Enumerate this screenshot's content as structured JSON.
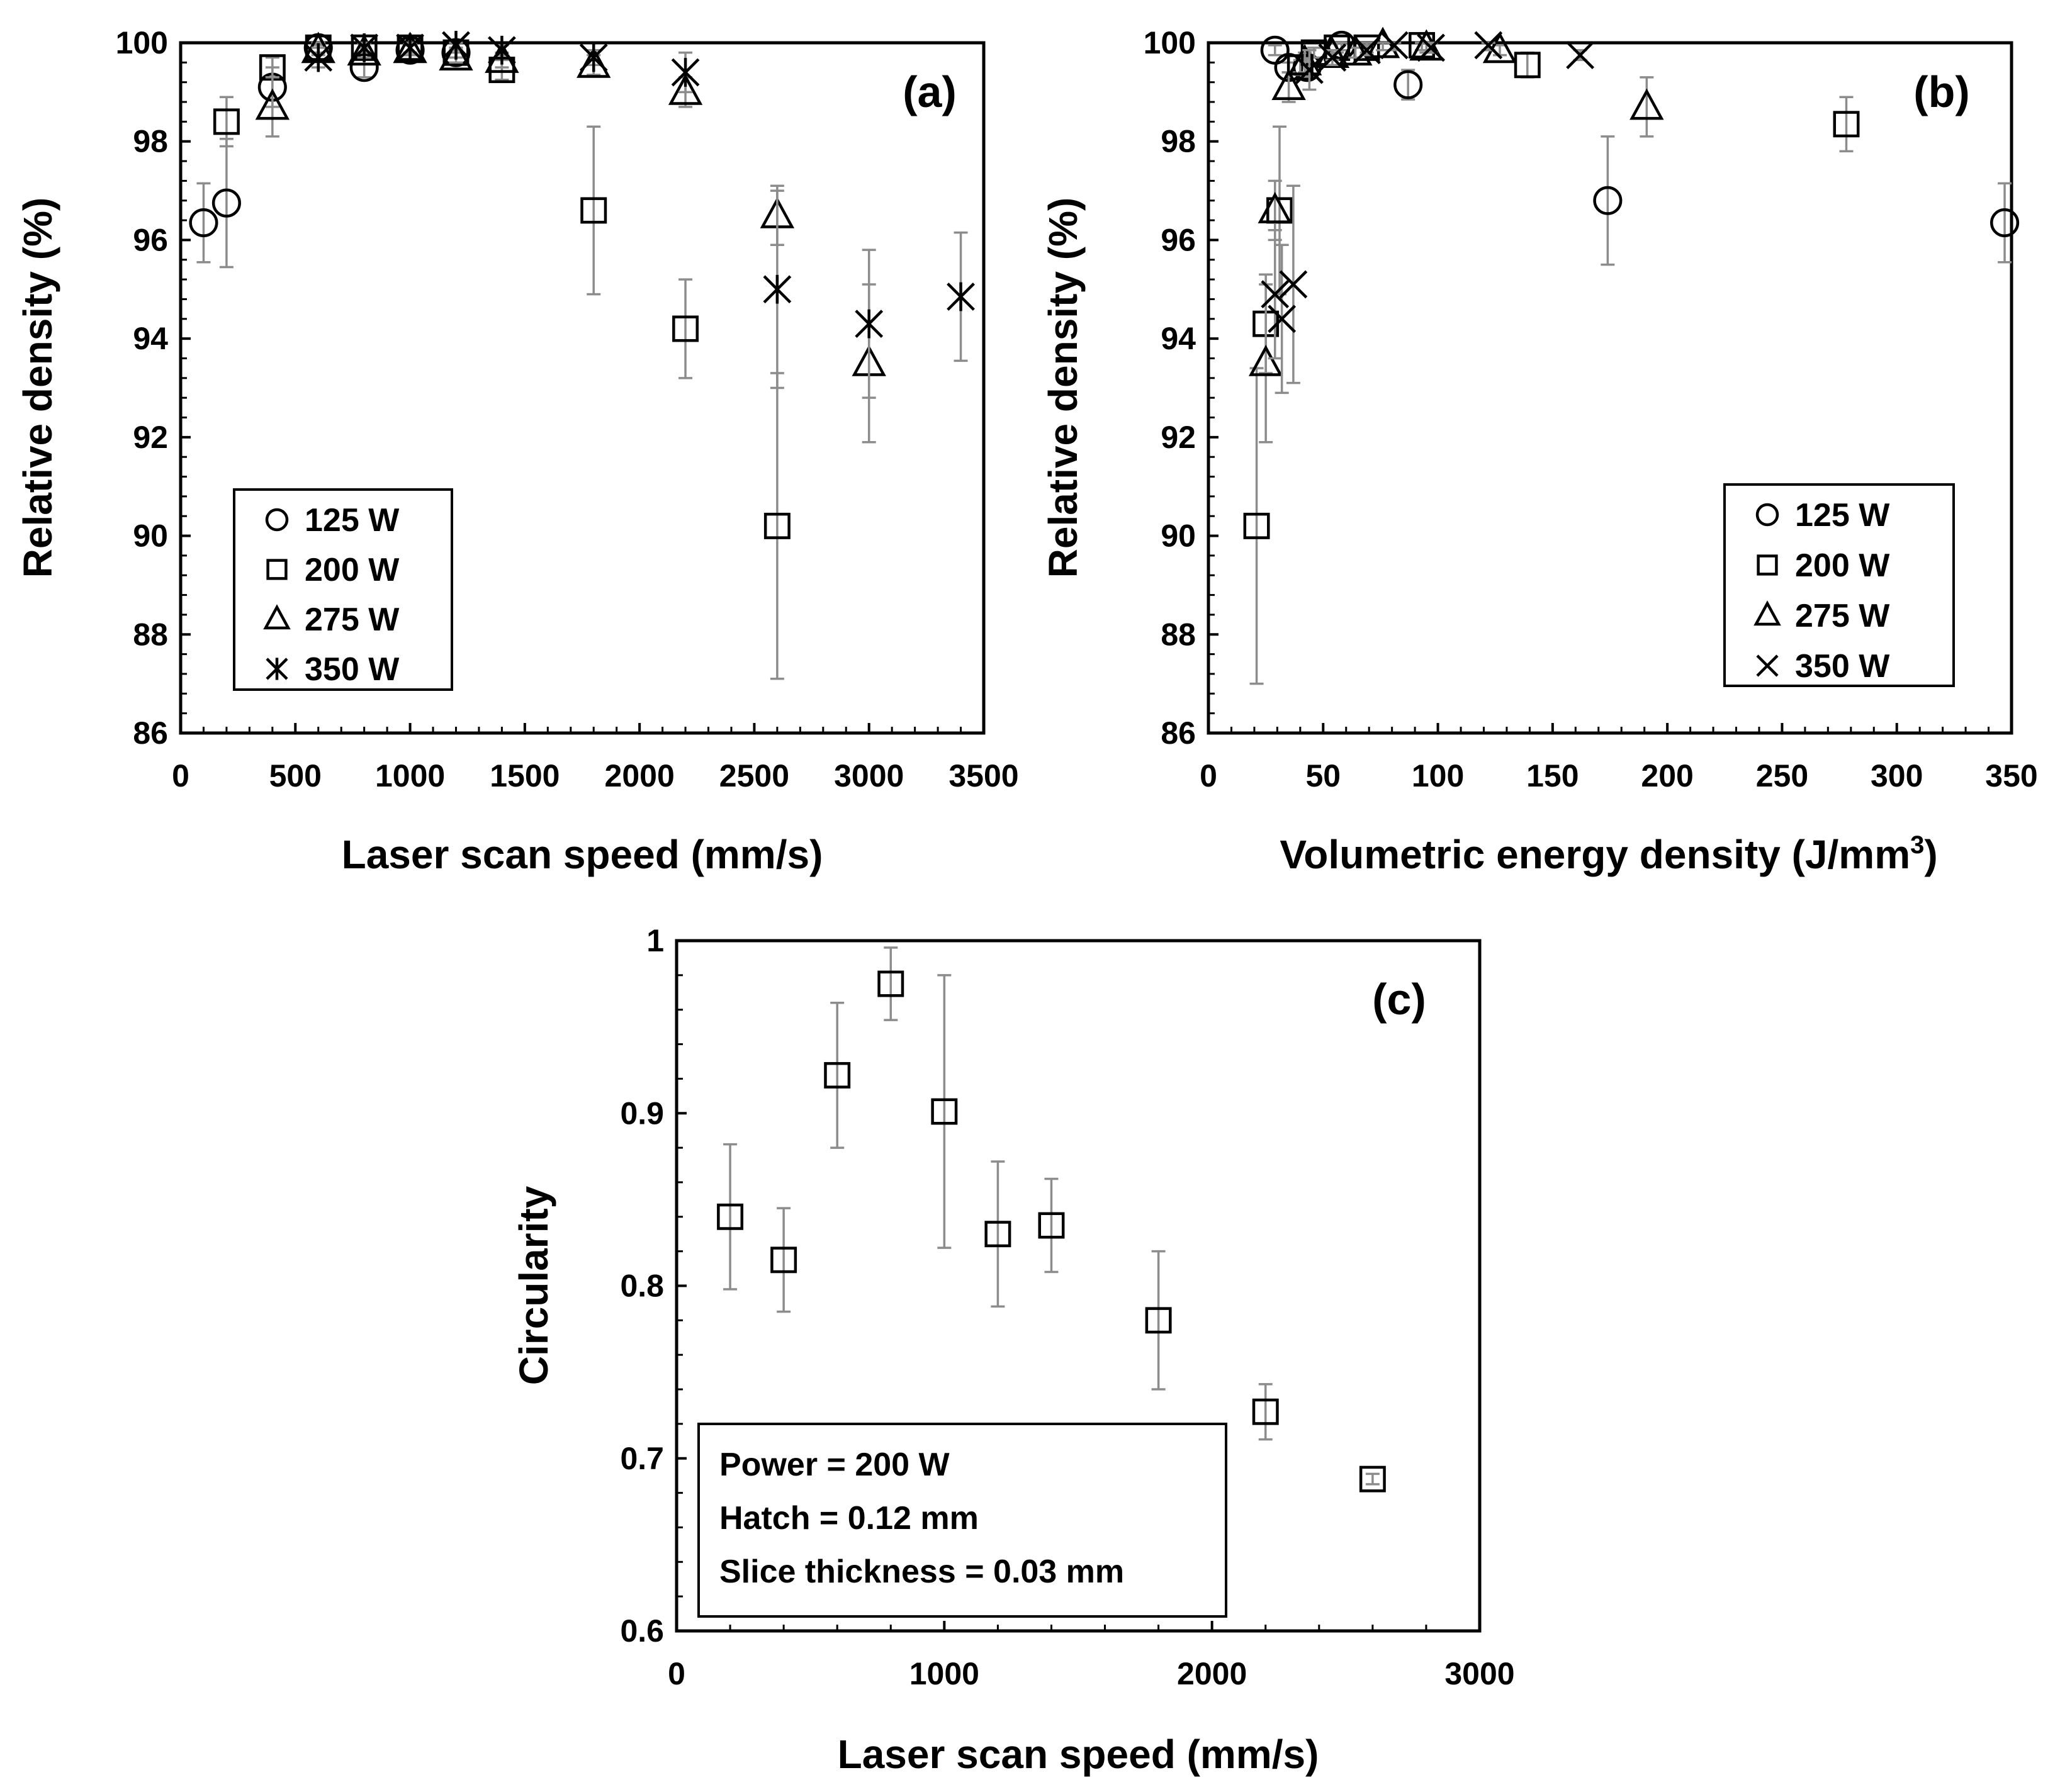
{
  "chart_data": [
    {
      "id": "a",
      "type": "scatter",
      "panel_label": "(a)",
      "xlabel": "Laser scan speed (mm/s)",
      "ylabel": "Relative density (%)",
      "xlim": [
        0,
        3500
      ],
      "ylim": [
        86,
        100
      ],
      "xticks": [
        0,
        500,
        1000,
        1500,
        2000,
        2500,
        3000,
        3500
      ],
      "yticks": [
        86,
        88,
        90,
        92,
        94,
        96,
        98,
        100
      ],
      "legend_position": "bottom-left",
      "series": [
        {
          "name": "125 W",
          "marker": "circle",
          "points": [
            {
              "x": 100,
              "y": 96.35,
              "err": 0.8
            },
            {
              "x": 200,
              "y": 96.75,
              "err": 1.3
            },
            {
              "x": 400,
              "y": 99.1,
              "err": 0.4
            },
            {
              "x": 600,
              "y": 99.9,
              "err": 0.1
            },
            {
              "x": 800,
              "y": 99.5,
              "err": 0.2
            },
            {
              "x": 1000,
              "y": 99.85,
              "err": 0.1
            },
            {
              "x": 1200,
              "y": 99.8,
              "err": 0.1
            }
          ]
        },
        {
          "name": "200 W",
          "marker": "square",
          "points": [
            {
              "x": 200,
              "y": 98.4,
              "err": 0.5
            },
            {
              "x": 400,
              "y": 99.5,
              "err": 0.2
            },
            {
              "x": 600,
              "y": 99.9,
              "err": 0.1
            },
            {
              "x": 800,
              "y": 99.9,
              "err": 0.1
            },
            {
              "x": 1000,
              "y": 99.9,
              "err": 0.1
            },
            {
              "x": 1200,
              "y": 99.8,
              "err": 0.1
            },
            {
              "x": 1400,
              "y": 99.45,
              "err": 0.2
            },
            {
              "x": 1800,
              "y": 96.6,
              "err": 1.7
            },
            {
              "x": 2200,
              "y": 94.2,
              "err": 1.0
            },
            {
              "x": 2600,
              "y": 90.2,
              "err": 3.1
            }
          ]
        },
        {
          "name": "275 W",
          "marker": "triangle",
          "points": [
            {
              "x": 400,
              "y": 98.7,
              "err": 0.6
            },
            {
              "x": 600,
              "y": 99.85,
              "err": 0.1
            },
            {
              "x": 800,
              "y": 99.8,
              "err": 0.1
            },
            {
              "x": 1000,
              "y": 99.85,
              "err": 0.1
            },
            {
              "x": 1200,
              "y": 99.7,
              "err": 0.1
            },
            {
              "x": 1400,
              "y": 99.65,
              "err": 0.15
            },
            {
              "x": 1800,
              "y": 99.55,
              "err": 0.2
            },
            {
              "x": 2200,
              "y": 99.0,
              "err": 0.3
            },
            {
              "x": 2600,
              "y": 96.5,
              "err": 0.6
            },
            {
              "x": 3000,
              "y": 93.5,
              "err": 1.6
            }
          ]
        },
        {
          "name": "350 W",
          "marker": "asterisk",
          "points": [
            {
              "x": 600,
              "y": 99.7,
              "err": 0.2
            },
            {
              "x": 800,
              "y": 99.9,
              "err": 0.1
            },
            {
              "x": 1000,
              "y": 99.9,
              "err": 0.1
            },
            {
              "x": 1200,
              "y": 99.95,
              "err": 0.1
            },
            {
              "x": 1400,
              "y": 99.85,
              "err": 0.1
            },
            {
              "x": 1800,
              "y": 99.7,
              "err": 0.15
            },
            {
              "x": 2200,
              "y": 99.4,
              "err": 0.4
            },
            {
              "x": 2600,
              "y": 95.0,
              "err": 2.0
            },
            {
              "x": 3000,
              "y": 94.3,
              "err": 1.5
            },
            {
              "x": 3400,
              "y": 94.85,
              "err": 1.3
            }
          ]
        }
      ]
    },
    {
      "id": "b",
      "type": "scatter",
      "panel_label": "(b)",
      "xlabel": "Volumetric energy density (J/mm",
      "xlabel_superscript": "3",
      "xlabel_suffix": ")",
      "ylabel": "Relative density (%)",
      "xlim": [
        0,
        350
      ],
      "ylim": [
        86,
        100
      ],
      "xticks": [
        0,
        50,
        100,
        150,
        200,
        250,
        300,
        350
      ],
      "yticks": [
        86,
        88,
        90,
        92,
        94,
        96,
        98,
        100
      ],
      "legend_position": "bottom-right",
      "series": [
        {
          "name": "125 W",
          "marker": "circle",
          "points": [
            {
              "x": 347,
              "y": 96.35,
              "err": 0.8
            },
            {
              "x": 174,
              "y": 96.8,
              "err": 1.3
            },
            {
              "x": 87,
              "y": 99.15,
              "err": 0.3
            },
            {
              "x": 58,
              "y": 99.95,
              "err": 0.1
            },
            {
              "x": 43,
              "y": 99.5,
              "err": 0.2
            },
            {
              "x": 35,
              "y": 99.5,
              "err": 0.1
            },
            {
              "x": 29,
              "y": 99.85,
              "err": 0.1
            }
          ]
        },
        {
          "name": "200 W",
          "marker": "square",
          "points": [
            {
              "x": 278,
              "y": 98.35,
              "err": 0.55
            },
            {
              "x": 139,
              "y": 99.55,
              "err": 0.25
            },
            {
              "x": 93,
              "y": 99.95,
              "err": 0.1
            },
            {
              "x": 69,
              "y": 99.9,
              "err": 0.1
            },
            {
              "x": 56,
              "y": 99.9,
              "err": 0.1
            },
            {
              "x": 46,
              "y": 99.8,
              "err": 0.1
            },
            {
              "x": 40,
              "y": 99.5,
              "err": 0.15
            },
            {
              "x": 31,
              "y": 96.6,
              "err": 1.7
            },
            {
              "x": 25,
              "y": 94.3,
              "err": 1.0
            },
            {
              "x": 21,
              "y": 90.2,
              "err": 3.2
            }
          ]
        },
        {
          "name": "275 W",
          "marker": "triangle",
          "points": [
            {
              "x": 191,
              "y": 98.7,
              "err": 0.6
            },
            {
              "x": 127,
              "y": 99.85,
              "err": 0.1
            },
            {
              "x": 95,
              "y": 99.9,
              "err": 0.1
            },
            {
              "x": 76,
              "y": 99.95,
              "err": 0.1
            },
            {
              "x": 64,
              "y": 99.8,
              "err": 0.1
            },
            {
              "x": 54,
              "y": 99.75,
              "err": 0.1
            },
            {
              "x": 42,
              "y": 99.6,
              "err": 0.2
            },
            {
              "x": 35,
              "y": 99.1,
              "err": 0.3
            },
            {
              "x": 29,
              "y": 96.6,
              "err": 0.6
            },
            {
              "x": 25,
              "y": 93.5,
              "err": 1.6
            }
          ]
        },
        {
          "name": "350 W",
          "marker": "x",
          "points": [
            {
              "x": 162,
              "y": 99.75,
              "err": 0.1
            },
            {
              "x": 122,
              "y": 99.95,
              "err": 0.1
            },
            {
              "x": 97,
              "y": 99.9,
              "err": 0.1
            },
            {
              "x": 81,
              "y": 99.95,
              "err": 0.1
            },
            {
              "x": 69,
              "y": 99.85,
              "err": 0.1
            },
            {
              "x": 54,
              "y": 99.7,
              "err": 0.15
            },
            {
              "x": 44,
              "y": 99.45,
              "err": 0.4
            },
            {
              "x": 37,
              "y": 95.1,
              "err": 2.0
            },
            {
              "x": 32,
              "y": 94.4,
              "err": 1.5
            },
            {
              "x": 29,
              "y": 94.9,
              "err": 1.3
            }
          ]
        }
      ]
    },
    {
      "id": "c",
      "type": "scatter",
      "panel_label": "(c)",
      "xlabel": "Laser scan speed (mm/s)",
      "ylabel": "Circularity",
      "xlim": [
        0,
        3000
      ],
      "ylim": [
        0.6,
        1.0
      ],
      "xticks": [
        0,
        1000,
        2000,
        3000
      ],
      "yticks": [
        0.6,
        0.7,
        0.8,
        0.9,
        1.0
      ],
      "tick_labels_y": [
        "0.6",
        "0.7",
        "0.8",
        "0.9",
        "1"
      ],
      "tick_labels_x": [
        "0",
        "1000",
        "2000",
        "3000"
      ],
      "note_lines": [
        "Power = 200 W",
        "Hatch = 0.12 mm",
        "Slice thickness = 0.03 mm"
      ],
      "series": [
        {
          "name": "200 W",
          "marker": "square",
          "points": [
            {
              "x": 200,
              "y": 0.84,
              "err": 0.042
            },
            {
              "x": 400,
              "y": 0.815,
              "err": 0.03
            },
            {
              "x": 600,
              "y": 0.922,
              "err": 0.042
            },
            {
              "x": 800,
              "y": 0.975,
              "err": 0.021
            },
            {
              "x": 1000,
              "y": 0.901,
              "err": 0.079
            },
            {
              "x": 1200,
              "y": 0.83,
              "err": 0.042
            },
            {
              "x": 1400,
              "y": 0.835,
              "err": 0.027
            },
            {
              "x": 1800,
              "y": 0.78,
              "err": 0.04
            },
            {
              "x": 2200,
              "y": 0.727,
              "err": 0.016
            },
            {
              "x": 2600,
              "y": 0.688,
              "err": 0.003
            }
          ]
        }
      ]
    }
  ]
}
